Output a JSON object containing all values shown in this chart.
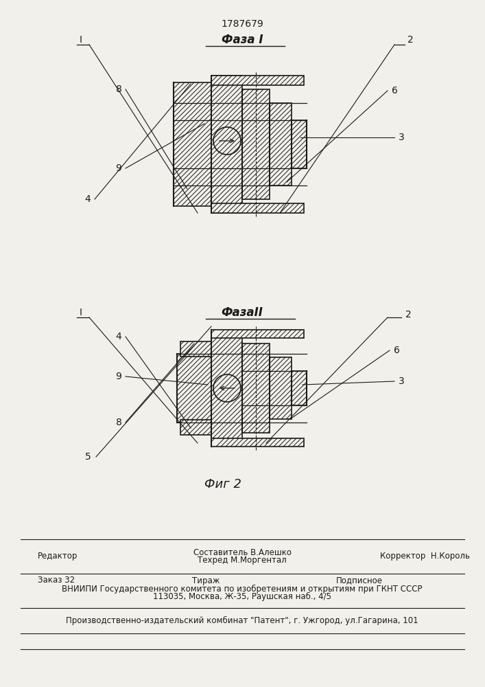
{
  "patent_number": "1787679",
  "bg_color": "#f2f0eb",
  "line_color": "#1a1a1a",
  "phase1_title": "Фаза I",
  "phase2_title": "ФазаІІ",
  "fig_label": "Фиг 2",
  "footer_editor": "Редактор",
  "footer_composer": "Составитель В.Алешко",
  "footer_techred": "Техред М.Моргентал",
  "footer_corrector": "Корректор  Н.Король",
  "footer_order": "Заказ 32",
  "footer_tirazh": "Тираж",
  "footer_podp": "Подписное",
  "footer_vniip": "ВНИИПИ Государственного комитета по изобретениям и открытиям при ГКНТ СССР",
  "footer_addr": "113035, Москва, Ж-35, Раушская наб., 4/5",
  "footer_patent": "Производственно-издательский комбинат \"Патент\", г. Ужгород, ул.Гагарина, 101"
}
